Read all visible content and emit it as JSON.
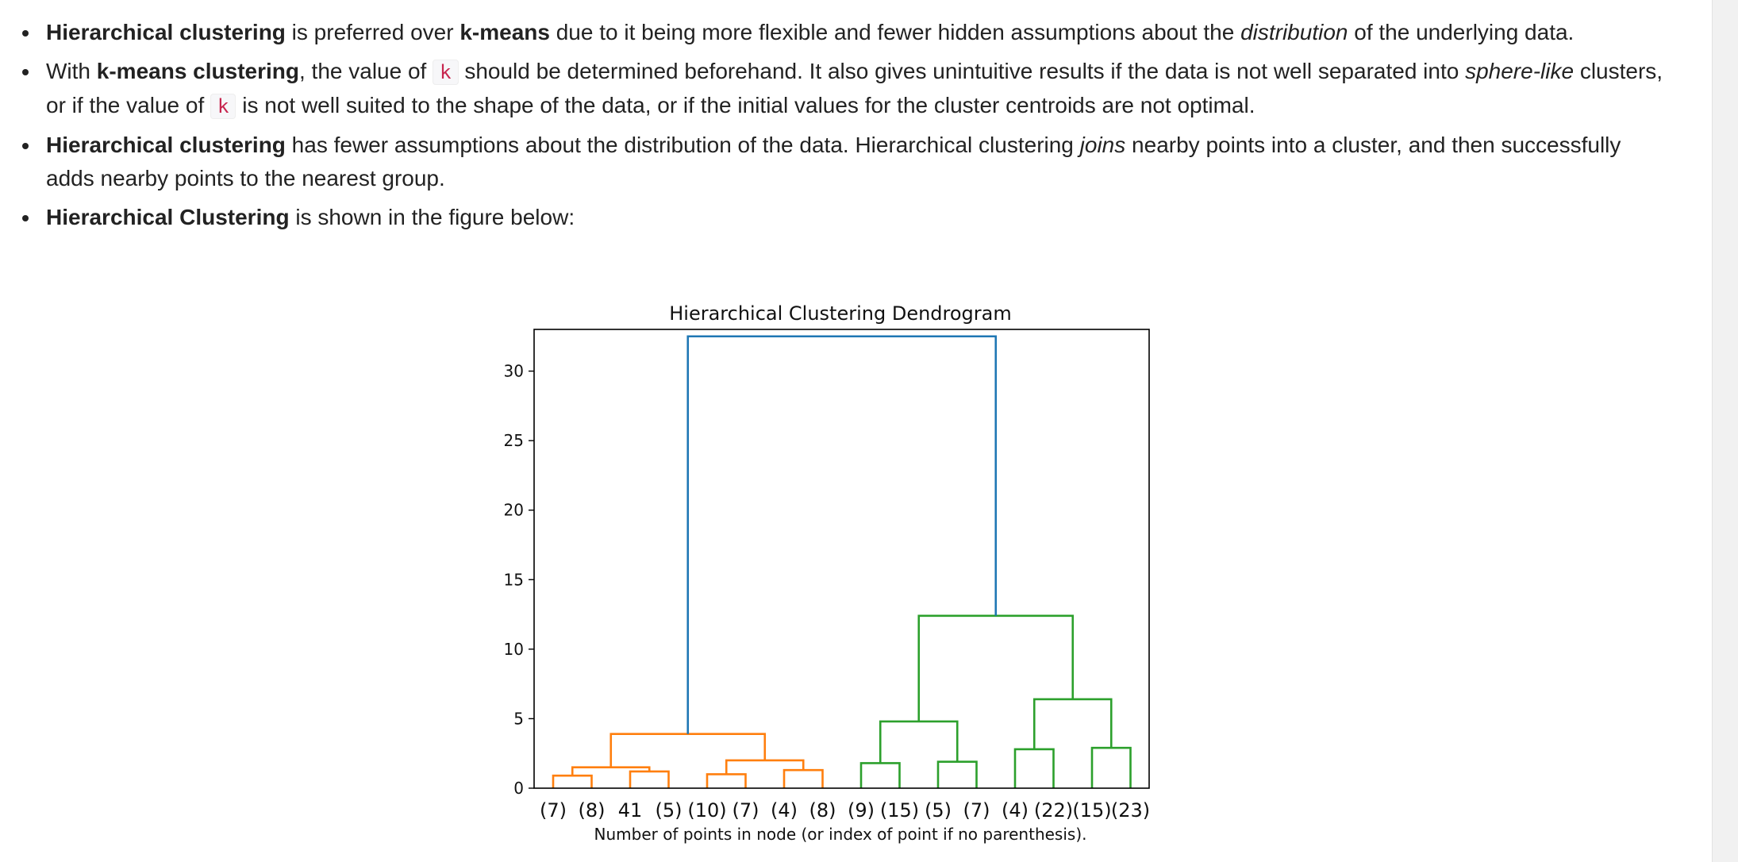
{
  "bullets": [
    {
      "b1": "Hierarchical clustering",
      "t1": " is preferred over ",
      "b2": "k-means",
      "t2": " due to it being more flexible and fewer hidden assumptions about the ",
      "i1": "distribution",
      "t3": " of the underlying data."
    },
    {
      "t0": "With ",
      "b1": "k-means clustering",
      "t1": ", the value of ",
      "code1": "k",
      "t2": " should be determined beforehand. It also gives unintuitive results if the data is not well separated into ",
      "i1": "sphere-like",
      "t3": " clusters, or if the value of ",
      "code2": "k",
      "t4": " is not well suited to the shape of the data, or if the initial values for the cluster centroids are not optimal."
    },
    {
      "b1": "Hierarchical clustering",
      "t1": " has fewer assumptions about the distribution of the data. Hierarchical clustering ",
      "i1": "joins",
      "t2": " nearby points into a cluster, and then successfully adds nearby points to the nearest group."
    },
    {
      "b1": "Hierarchical Clustering",
      "t1": " is shown in the figure below:"
    }
  ],
  "chart_data": {
    "type": "dendrogram",
    "title": "Hierarchical Clustering Dendrogram",
    "xlabel": "Number of points in node (or index of point if no parenthesis).",
    "ylabel": "",
    "ylim": [
      0,
      33
    ],
    "yticks": [
      0,
      5,
      10,
      15,
      20,
      25,
      30
    ],
    "leaves": [
      "(7)",
      "(8)",
      "41",
      "(5)",
      "(10)",
      "(7)",
      "(4)",
      "(8)",
      "(9)",
      "(15)",
      "(5)",
      "(7)",
      "(4)",
      "(22)",
      "(15)",
      "(23)"
    ],
    "colors": {
      "orange": "#ff7f0e",
      "green": "#2ca02c",
      "blue": "#1f77b4"
    },
    "links": [
      {
        "left": 0,
        "right": 1,
        "height": 0.9,
        "color": "orange"
      },
      {
        "left": 2,
        "right": 3,
        "height": 1.2,
        "color": "orange"
      },
      {
        "left": 4,
        "right": 5,
        "height": 1.0,
        "color": "orange"
      },
      {
        "left": 6,
        "right": 7,
        "height": 1.3,
        "color": "orange"
      },
      {
        "left": "c0",
        "right": "c1",
        "height": 1.5,
        "color": "orange"
      },
      {
        "left": "c2",
        "right": "c3",
        "height": 2.0,
        "color": "orange"
      },
      {
        "left": "c4",
        "right": "c5",
        "height": 3.9,
        "color": "orange"
      },
      {
        "left": 8,
        "right": 9,
        "height": 1.8,
        "color": "green"
      },
      {
        "left": 10,
        "right": 11,
        "height": 1.9,
        "color": "green"
      },
      {
        "left": 12,
        "right": 13,
        "height": 2.8,
        "color": "green"
      },
      {
        "left": 14,
        "right": 15,
        "height": 2.9,
        "color": "green"
      },
      {
        "left": "c7",
        "right": "c8",
        "height": 4.8,
        "color": "green"
      },
      {
        "left": "c9",
        "right": "c10",
        "height": 6.4,
        "color": "green"
      },
      {
        "left": "c11",
        "right": "c12",
        "height": 12.4,
        "color": "green"
      },
      {
        "left": "c6",
        "right": "c13",
        "height": 32.5,
        "color": "blue"
      }
    ]
  }
}
